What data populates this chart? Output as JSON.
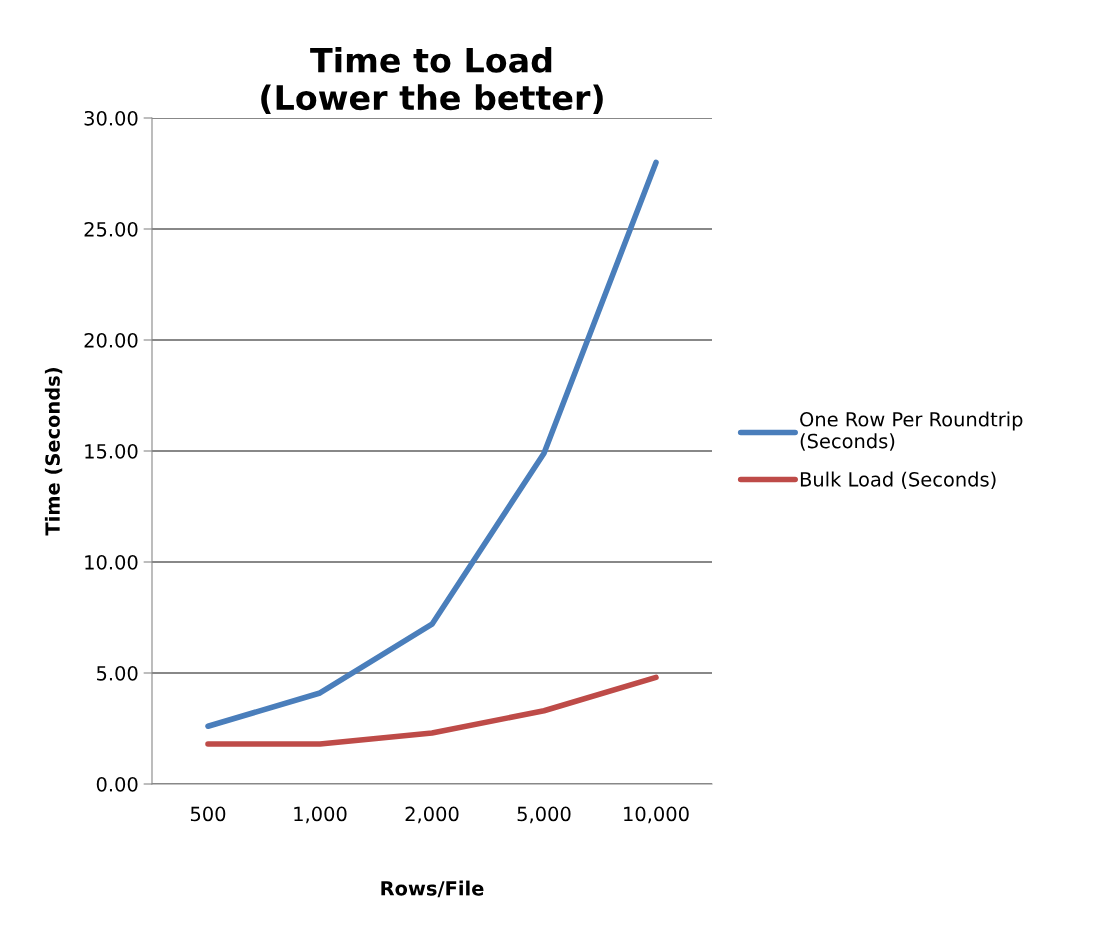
{
  "chart_data": {
    "type": "line",
    "title": "Time to Load\n(Lower the better)",
    "xlabel": "Rows/File",
    "ylabel": "Time (Seconds)",
    "categories": [
      "500",
      "1,000",
      "2,000",
      "5,000",
      "10,000"
    ],
    "series": [
      {
        "name": "One Row Per Roundtrip\n(Seconds)",
        "color": "#4a7ebb",
        "values": [
          2.6,
          4.1,
          7.2,
          14.9,
          28.0
        ]
      },
      {
        "name": "Bulk Load (Seconds)",
        "color": "#be4b48",
        "values": [
          1.8,
          1.8,
          2.3,
          3.3,
          4.8
        ]
      }
    ],
    "ylim": [
      0,
      30
    ],
    "yticks": [
      {
        "value": 0,
        "label": "0.00"
      },
      {
        "value": 5,
        "label": "5.00"
      },
      {
        "value": 10,
        "label": "10.00"
      },
      {
        "value": 15,
        "label": "15.00"
      },
      {
        "value": 20,
        "label": "20.00"
      },
      {
        "value": 25,
        "label": "25.00"
      },
      {
        "value": 30,
        "label": "30.00"
      }
    ],
    "grid": "y",
    "legend": "right",
    "marker": "none",
    "line_style": "solid"
  }
}
